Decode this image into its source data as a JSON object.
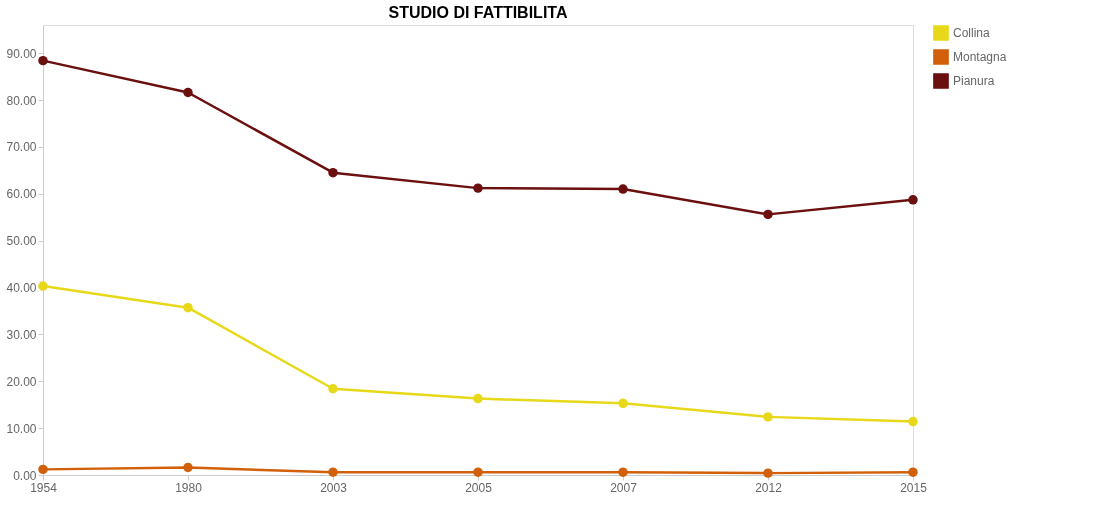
{
  "chart_data": {
    "type": "line",
    "title": "STUDIO DI FATTIBILITA",
    "categories": [
      "1954",
      "1980",
      "2003",
      "2005",
      "2007",
      "2012",
      "2015"
    ],
    "series": [
      {
        "name": "Collina",
        "color": "#e8d81a",
        "values": [
          40.3,
          35.7,
          18.4,
          16.3,
          15.3,
          12.4,
          11.4
        ]
      },
      {
        "name": "Montagna",
        "color": "#d2600a",
        "values": [
          1.2,
          1.6,
          0.6,
          0.6,
          0.6,
          0.4,
          0.6
        ]
      },
      {
        "name": "Pianura",
        "color": "#6b0f0f",
        "values": [
          88.4,
          81.6,
          64.5,
          61.2,
          61.0,
          55.6,
          58.7
        ]
      }
    ],
    "ylim": [
      0,
      96
    ],
    "yticks": [
      {
        "value": 0,
        "label": "0.00"
      },
      {
        "value": 10,
        "label": "10.00"
      },
      {
        "value": 20,
        "label": "20.00"
      },
      {
        "value": 30,
        "label": "30.00"
      },
      {
        "value": 40,
        "label": "40.00"
      },
      {
        "value": 50,
        "label": "50.00"
      },
      {
        "value": 60,
        "label": "60.00"
      },
      {
        "value": 70,
        "label": "70.00"
      },
      {
        "value": 80,
        "label": "80.00"
      },
      {
        "value": 90,
        "label": "90.00"
      }
    ],
    "grid": false,
    "legend": "right",
    "marker": "circle",
    "line_style": "solid"
  }
}
